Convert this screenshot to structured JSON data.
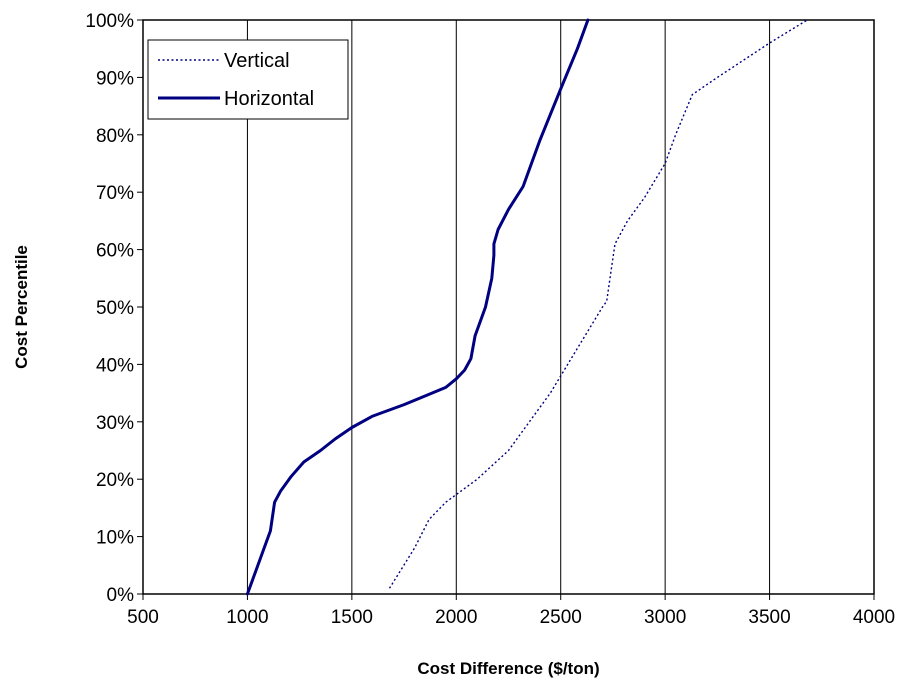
{
  "chart_data": {
    "type": "line",
    "title": "",
    "xlabel": "Cost Difference ($/ton)",
    "ylabel": "Cost Percentile",
    "xlim": [
      500,
      4000
    ],
    "ylim": [
      0,
      1
    ],
    "x_ticks": [
      500,
      1000,
      1500,
      2000,
      2500,
      3000,
      3500,
      4000
    ],
    "x_tick_labels": [
      "500",
      "1000",
      "1500",
      "2000",
      "2500",
      "3000",
      "3500",
      "4000"
    ],
    "y_ticks": [
      0,
      0.1,
      0.2,
      0.3,
      0.4,
      0.5,
      0.6,
      0.7,
      0.8,
      0.9,
      1.0
    ],
    "y_tick_labels": [
      "0%",
      "10%",
      "20%",
      "30%",
      "40%",
      "50%",
      "60%",
      "70%",
      "80%",
      "90%",
      "100%"
    ],
    "grid": "vertical",
    "legend_position": "top-left",
    "series": [
      {
        "name": "Vertical",
        "style": "dotted",
        "color": "#000080",
        "points": [
          [
            1680,
            0.01
          ],
          [
            1800,
            0.08
          ],
          [
            1870,
            0.13
          ],
          [
            1950,
            0.16
          ],
          [
            2100,
            0.2
          ],
          [
            2250,
            0.25
          ],
          [
            2350,
            0.3
          ],
          [
            2450,
            0.35
          ],
          [
            2600,
            0.44
          ],
          [
            2700,
            0.5
          ],
          [
            2720,
            0.51
          ],
          [
            2740,
            0.56
          ],
          [
            2760,
            0.61
          ],
          [
            2820,
            0.65
          ],
          [
            2900,
            0.69
          ],
          [
            3000,
            0.75
          ],
          [
            3050,
            0.8
          ],
          [
            3130,
            0.87
          ],
          [
            3250,
            0.9
          ],
          [
            3500,
            0.96
          ],
          [
            3680,
            1.0
          ]
        ]
      },
      {
        "name": "Horizontal",
        "style": "solid",
        "color": "#000080",
        "points": [
          [
            1000,
            0.0
          ],
          [
            1040,
            0.04
          ],
          [
            1080,
            0.08
          ],
          [
            1110,
            0.11
          ],
          [
            1130,
            0.16
          ],
          [
            1160,
            0.18
          ],
          [
            1210,
            0.205
          ],
          [
            1270,
            0.23
          ],
          [
            1350,
            0.25
          ],
          [
            1420,
            0.27
          ],
          [
            1500,
            0.29
          ],
          [
            1600,
            0.31
          ],
          [
            1750,
            0.33
          ],
          [
            1850,
            0.345
          ],
          [
            1950,
            0.36
          ],
          [
            2000,
            0.375
          ],
          [
            2040,
            0.39
          ],
          [
            2070,
            0.41
          ],
          [
            2090,
            0.45
          ],
          [
            2140,
            0.5
          ],
          [
            2170,
            0.55
          ],
          [
            2180,
            0.59
          ],
          [
            2180,
            0.61
          ],
          [
            2200,
            0.635
          ],
          [
            2250,
            0.67
          ],
          [
            2320,
            0.71
          ],
          [
            2400,
            0.79
          ],
          [
            2500,
            0.88
          ],
          [
            2580,
            0.95
          ],
          [
            2630,
            1.0
          ]
        ]
      }
    ]
  }
}
